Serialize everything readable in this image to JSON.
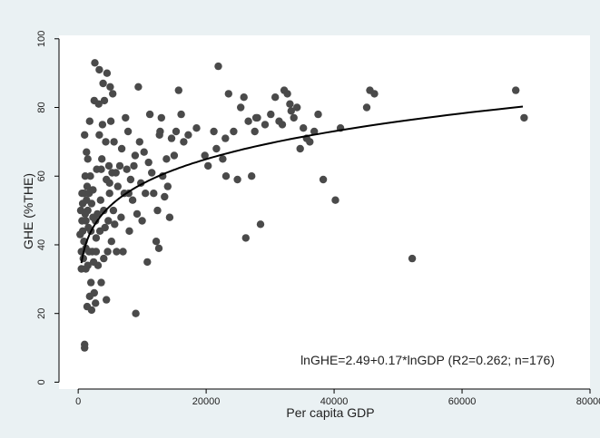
{
  "chart_data": {
    "type": "scatter",
    "title": "",
    "xlabel": "Per capita GDP",
    "ylabel": "GHE (%THE)",
    "xlim": [
      -3000,
      80000
    ],
    "ylim": [
      -2,
      101
    ],
    "xticks": [
      0,
      20000,
      40000,
      60000,
      80000
    ],
    "yticks": [
      0,
      20,
      40,
      60,
      80,
      100
    ],
    "grid": false,
    "legend": "none",
    "annotation": "lnGHE=2.49+0.17*lnGDP (R2=0.262; n=176)",
    "colors": {
      "background": "#eaf1f3",
      "plot_area": "#ffffff",
      "points": "#4a4a4a",
      "fit_line": "#000000"
    },
    "fit_curve": {
      "equation": "lnGHE = 2.49 + 0.17*lnGDP",
      "intercept": 2.49,
      "slope": 0.17,
      "x_range": [
        500,
        69500
      ]
    },
    "series": [
      {
        "points": [
          [
            300,
            43
          ],
          [
            400,
            50
          ],
          [
            500,
            33
          ],
          [
            500,
            38
          ],
          [
            600,
            47
          ],
          [
            700,
            44
          ],
          [
            700,
            52
          ],
          [
            800,
            36
          ],
          [
            900,
            41
          ],
          [
            900,
            55
          ],
          [
            1000,
            11
          ],
          [
            1000,
            10
          ],
          [
            1000,
            72
          ],
          [
            1100,
            49
          ],
          [
            1100,
            60
          ],
          [
            1200,
            33
          ],
          [
            1200,
            39
          ],
          [
            1200,
            47
          ],
          [
            1300,
            53
          ],
          [
            1300,
            67
          ],
          [
            1400,
            57
          ],
          [
            1400,
            22
          ],
          [
            1500,
            34
          ],
          [
            1500,
            50
          ],
          [
            1600,
            45
          ],
          [
            1700,
            38
          ],
          [
            1700,
            55
          ],
          [
            1800,
            76
          ],
          [
            1800,
            25
          ],
          [
            1900,
            60
          ],
          [
            2000,
            29
          ],
          [
            2000,
            44
          ],
          [
            2100,
            21
          ],
          [
            2100,
            52
          ],
          [
            2200,
            38
          ],
          [
            2300,
            56
          ],
          [
            2400,
            35
          ],
          [
            2500,
            82
          ],
          [
            2500,
            26
          ],
          [
            2600,
            93
          ],
          [
            2700,
            47
          ],
          [
            2700,
            23
          ],
          [
            2800,
            38
          ],
          [
            2900,
            62
          ],
          [
            3000,
            49
          ],
          [
            3100,
            34
          ],
          [
            3200,
            81
          ],
          [
            3300,
            72
          ],
          [
            3300,
            91
          ],
          [
            3400,
            44
          ],
          [
            3500,
            53
          ],
          [
            3600,
            29
          ],
          [
            3700,
            65
          ],
          [
            3800,
            75
          ],
          [
            3900,
            87
          ],
          [
            4000,
            36
          ],
          [
            4000,
            50
          ],
          [
            4100,
            82
          ],
          [
            4200,
            45
          ],
          [
            4300,
            70
          ],
          [
            4400,
            59
          ],
          [
            4400,
            24
          ],
          [
            4500,
            90
          ],
          [
            4600,
            38
          ],
          [
            4700,
            47
          ],
          [
            4800,
            63
          ],
          [
            4900,
            55
          ],
          [
            5000,
            86
          ],
          [
            5100,
            76
          ],
          [
            5200,
            41
          ],
          [
            5300,
            61
          ],
          [
            5400,
            84
          ],
          [
            5500,
            50
          ],
          [
            5600,
            70
          ],
          [
            5700,
            46
          ],
          [
            5900,
            61
          ],
          [
            6000,
            38
          ],
          [
            6200,
            57
          ],
          [
            6500,
            63
          ],
          [
            6700,
            48
          ],
          [
            7000,
            38
          ],
          [
            7200,
            55
          ],
          [
            7400,
            77
          ],
          [
            7600,
            62
          ],
          [
            7800,
            73
          ],
          [
            8000,
            44
          ],
          [
            8200,
            59
          ],
          [
            8500,
            53
          ],
          [
            8700,
            63
          ],
          [
            9000,
            20
          ],
          [
            9200,
            49
          ],
          [
            9400,
            86
          ],
          [
            9600,
            70
          ],
          [
            9800,
            58
          ],
          [
            10000,
            47
          ],
          [
            10300,
            67
          ],
          [
            10500,
            55
          ],
          [
            10800,
            35
          ],
          [
            11000,
            64
          ],
          [
            11200,
            78
          ],
          [
            11500,
            61
          ],
          [
            11800,
            55
          ],
          [
            12200,
            41
          ],
          [
            12400,
            50
          ],
          [
            12600,
            39
          ],
          [
            12800,
            73
          ],
          [
            13000,
            77
          ],
          [
            13200,
            60
          ],
          [
            13500,
            54
          ],
          [
            13800,
            65
          ],
          [
            14000,
            57
          ],
          [
            14300,
            48
          ],
          [
            14600,
            71
          ],
          [
            15000,
            66
          ],
          [
            15300,
            73
          ],
          [
            15700,
            85
          ],
          [
            16100,
            78
          ],
          [
            16500,
            70
          ],
          [
            17200,
            72
          ],
          [
            19800,
            66
          ],
          [
            20300,
            63
          ],
          [
            21200,
            73
          ],
          [
            21600,
            68
          ],
          [
            21900,
            92
          ],
          [
            22600,
            65
          ],
          [
            23100,
            60
          ],
          [
            23500,
            84
          ],
          [
            24300,
            73
          ],
          [
            24900,
            59
          ],
          [
            25400,
            80
          ],
          [
            25900,
            83
          ],
          [
            26200,
            42
          ],
          [
            26600,
            76
          ],
          [
            27100,
            60
          ],
          [
            27600,
            73
          ],
          [
            28000,
            77
          ],
          [
            28500,
            46
          ],
          [
            29200,
            75
          ],
          [
            30100,
            78
          ],
          [
            30800,
            83
          ],
          [
            31400,
            76
          ],
          [
            31900,
            75
          ],
          [
            32200,
            85
          ],
          [
            32700,
            84
          ],
          [
            33100,
            81
          ],
          [
            33700,
            77
          ],
          [
            34200,
            80
          ],
          [
            34700,
            68
          ],
          [
            35200,
            74
          ],
          [
            35700,
            71
          ],
          [
            36200,
            70
          ],
          [
            36900,
            73
          ],
          [
            37500,
            78
          ],
          [
            38300,
            59
          ],
          [
            40200,
            53
          ],
          [
            41000,
            74
          ],
          [
            45100,
            80
          ],
          [
            45600,
            85
          ],
          [
            46300,
            84
          ],
          [
            52200,
            36
          ],
          [
            68400,
            85
          ],
          [
            69700,
            77
          ],
          [
            600,
            55
          ],
          [
            1500,
            65
          ],
          [
            2300,
            48
          ],
          [
            3600,
            62
          ],
          [
            4900,
            58
          ],
          [
            6800,
            68
          ],
          [
            8900,
            66
          ],
          [
            12700,
            72
          ],
          [
            2800,
            42
          ],
          [
            7900,
            55
          ],
          [
            18500,
            74
          ],
          [
            23000,
            71
          ],
          [
            27800,
            77
          ],
          [
            33300,
            79
          ]
        ]
      }
    ]
  }
}
